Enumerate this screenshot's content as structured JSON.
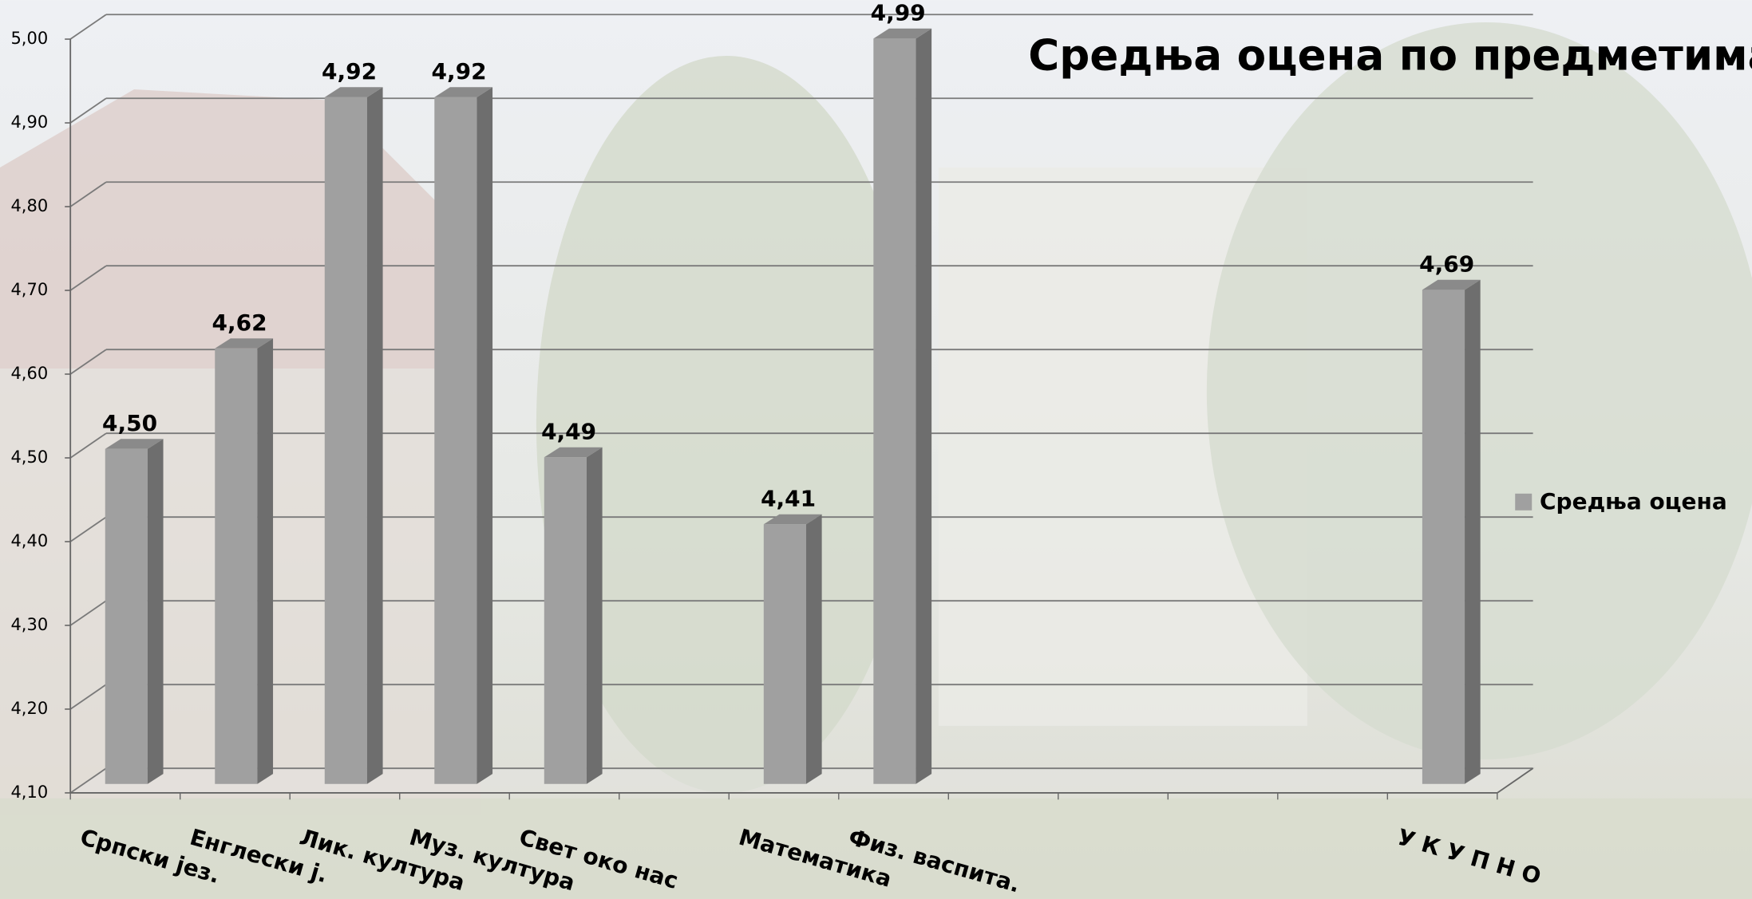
{
  "chart_data": {
    "type": "bar3d",
    "title": "Средња оцена по предметима",
    "categories": [
      "Српски јез.",
      "Енглески ј.",
      "Лик. култура",
      "Муз. култура",
      "Свет око нас",
      null,
      "Математика",
      "Физ. васпита.",
      null,
      null,
      null,
      null,
      "У К У П Н О"
    ],
    "series": [
      {
        "name": "Средња оцена",
        "color": "#a0a0a0",
        "values": [
          4.5,
          4.62,
          4.92,
          4.92,
          4.49,
          null,
          4.41,
          4.99,
          null,
          null,
          null,
          null,
          4.69
        ],
        "value_labels": [
          "4,50",
          "4,62",
          "4,92",
          "4,92",
          "4,49",
          null,
          "4,41",
          "4,99",
          null,
          null,
          null,
          null,
          "4,69"
        ]
      }
    ],
    "ylim": [
      4.1,
      5.0
    ],
    "yticks": [
      {
        "value": 4.1,
        "label": "4,10"
      },
      {
        "value": 4.2,
        "label": "4,20"
      },
      {
        "value": 4.3,
        "label": "4,30"
      },
      {
        "value": 4.4,
        "label": "4,40"
      },
      {
        "value": 4.5,
        "label": "4,50"
      },
      {
        "value": 4.6,
        "label": "4,60"
      },
      {
        "value": 4.7,
        "label": "4,70"
      },
      {
        "value": 4.8,
        "label": "4,80"
      },
      {
        "value": 4.9,
        "label": "4,90"
      },
      {
        "value": 5.0,
        "label": "5,00"
      }
    ],
    "grid": true,
    "legend": "right"
  }
}
